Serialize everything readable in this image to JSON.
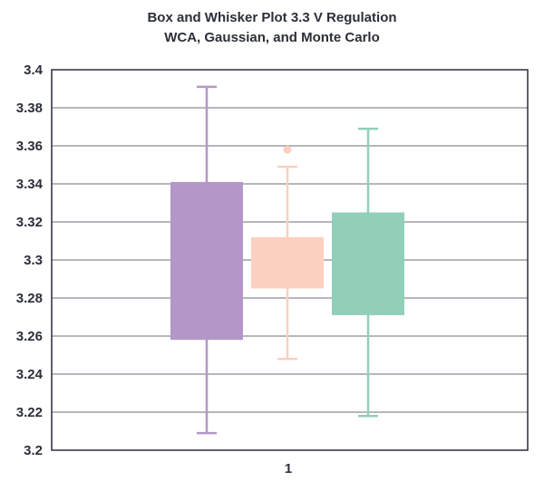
{
  "chart_data": {
    "type": "box",
    "title": [
      "Box and Whisker Plot 3.3 V Regulation",
      "WCA, Gaussian, and Monte Carlo"
    ],
    "xlabel": "",
    "ylabel": "",
    "categories": [
      "1"
    ],
    "ylim": [
      3.2,
      3.4
    ],
    "yticks": [
      "3.4",
      "3.38",
      "3.36",
      "3.34",
      "3.32",
      "3.3",
      "3.28",
      "3.26",
      "3.24",
      "3.22",
      "3.2"
    ],
    "grid": true,
    "legend": "none",
    "series": [
      {
        "color": "#b397c8",
        "whisker_low": 3.209,
        "q1": 3.258,
        "q3": 3.341,
        "whisker_high": 3.391,
        "outliers": []
      },
      {
        "color": "#fcd0c0",
        "whisker_low": 3.248,
        "q1": 3.285,
        "q3": 3.312,
        "whisker_high": 3.349,
        "outliers": [
          3.358
        ]
      },
      {
        "color": "#92cfb8",
        "whisker_low": 3.218,
        "q1": 3.271,
        "q3": 3.325,
        "whisker_high": 3.369,
        "outliers": []
      }
    ]
  }
}
